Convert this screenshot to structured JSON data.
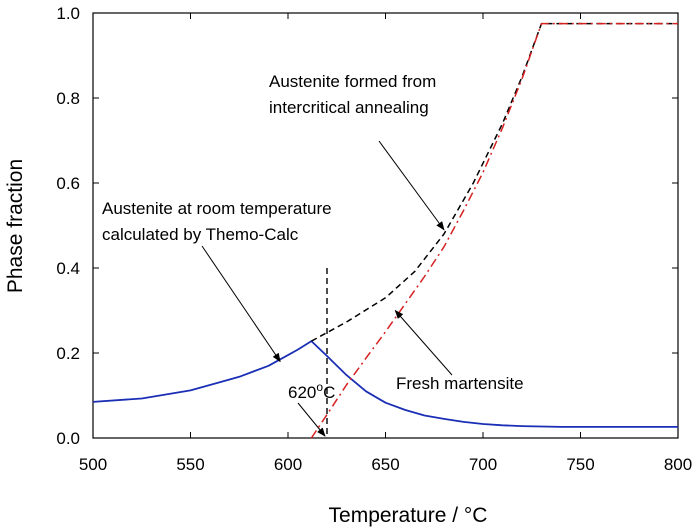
{
  "chart_data": {
    "type": "line",
    "xlabel": "Temperature / °C",
    "ylabel": "Phase fraction",
    "xlim": [
      500,
      800
    ],
    "ylim": [
      0,
      1.0
    ],
    "x_ticks": [
      "500",
      "550",
      "600",
      "650",
      "700",
      "750",
      "800"
    ],
    "y_ticks": [
      "0.0",
      "0.2",
      "0.4",
      "0.6",
      "0.8",
      "1.0"
    ],
    "grid": false,
    "legend": "none",
    "series": [
      {
        "style": "solid",
        "color": "#1a2fb5",
        "x": [
          500,
          525,
          550,
          575,
          590,
          600,
          605,
          612,
          620,
          630,
          640,
          650,
          660,
          670,
          680,
          690,
          700,
          710,
          720,
          730,
          740,
          760,
          780,
          800
        ],
        "y": [
          0.085,
          0.093,
          0.112,
          0.144,
          0.17,
          0.195,
          0.208,
          0.228,
          0.193,
          0.148,
          0.11,
          0.083,
          0.066,
          0.053,
          0.045,
          0.038,
          0.033,
          0.03,
          0.028,
          0.027,
          0.026,
          0.026,
          0.026,
          0.026
        ]
      },
      {
        "style": "dashed",
        "color": "#000000",
        "x": [
          612,
          630,
          650,
          665,
          680,
          695,
          710,
          720,
          730,
          750,
          775,
          800
        ],
        "y": [
          0.228,
          0.273,
          0.33,
          0.392,
          0.48,
          0.6,
          0.74,
          0.85,
          0.975,
          0.975,
          0.975,
          0.975
        ]
      },
      {
        "style": "dash-dot",
        "color": "#d62020",
        "x": [
          612,
          620,
          630,
          640,
          650,
          660,
          670,
          680,
          690,
          700,
          710,
          720,
          730,
          750,
          775,
          800
        ],
        "y": [
          0.0,
          0.055,
          0.125,
          0.188,
          0.25,
          0.315,
          0.38,
          0.45,
          0.535,
          0.625,
          0.73,
          0.845,
          0.975,
          0.975,
          0.975,
          0.975
        ]
      }
    ],
    "vline": {
      "x": 620,
      "y_top": 0.4,
      "style": "dashed",
      "color": "#000000"
    },
    "annotations": [
      {
        "lines": [
          "Austenite formed from",
          "intercritical annealing"
        ],
        "arrow_to": [
          680,
          0.49
        ]
      },
      {
        "lines": [
          "Austenite at room temperature",
          "calculated by Themo-Calc"
        ],
        "arrow_to": [
          596,
          0.18
        ]
      },
      {
        "lines": [
          "Fresh martensite"
        ],
        "arrow_to": [
          655,
          0.3
        ]
      },
      {
        "text": "620",
        "sup": "o",
        "unit": "C",
        "arrow_to": [
          620,
          0.0
        ]
      }
    ]
  }
}
